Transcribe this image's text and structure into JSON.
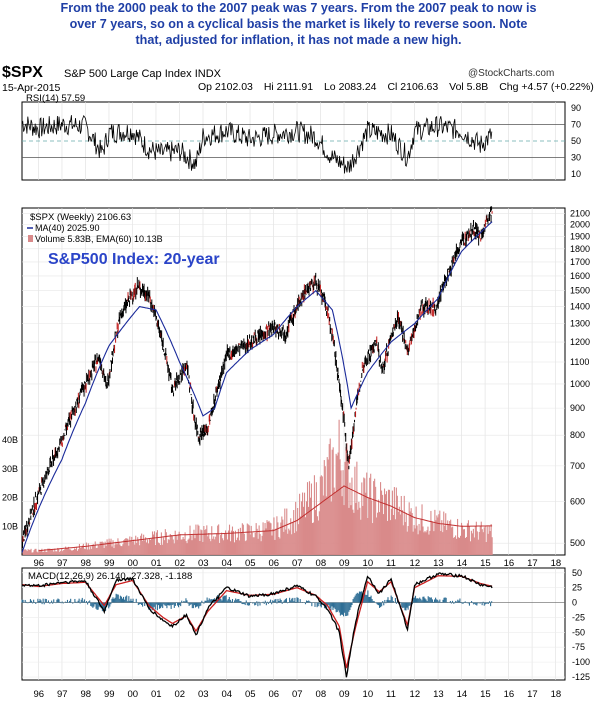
{
  "headline": {
    "line1": "From the 2000 peak to the 2007 peak was 7 years. From the 2007 peak to now is",
    "line2": "over 7 years, so on a cyclical basis the market is likely to reverse soon. Note",
    "line3": "that, adjusted for inflation, it has not made a new high."
  },
  "chart_header": {
    "ticker": "$SPX",
    "name": "S&P 500 Large Cap Index",
    "exchange": "INDX",
    "credit": "@StockCharts.com",
    "date": "15-Apr-2015",
    "open": "Op 2102.03",
    "high": "Hi 2111.91",
    "low": "Lo 2083.24",
    "close": "Cl 2106.63",
    "volume": "Vol 5.8B",
    "change": "Chg +4.57 (+0.22%)",
    "change_sign": "▲"
  },
  "colors": {
    "panel_bg": "#ffffff",
    "plot_bg": "#ffffff",
    "price_bars": "#000000",
    "ma_line": "#1a2a9a",
    "volume_bars": "#d98a8a",
    "volume_ema": "#c23030",
    "headline": "#1f3fa6",
    "macd_line": "#000000",
    "signal_line": "#cc2020",
    "histogram": "#2e6e95"
  },
  "chart_data": [
    {
      "panel": "rsi",
      "type": "line",
      "legend": "RSI(14) 57.59",
      "yticks": [
        10,
        30,
        50,
        70,
        90
      ],
      "ylim": [
        3,
        97
      ],
      "reference_lines": [
        30,
        50,
        70
      ],
      "x": [
        1995.3,
        1996,
        1997,
        1998,
        1998.7,
        1999,
        2000,
        2000.7,
        2001.2,
        2002,
        2002.7,
        2003,
        2004,
        2005,
        2006,
        2007,
        2007.8,
        2008.5,
        2009.2,
        2010,
        2011,
        2011.7,
        2012,
        2013,
        2014,
        2014.8,
        2015.3
      ],
      "values": [
        72,
        65,
        70,
        68,
        35,
        60,
        62,
        40,
        35,
        38,
        22,
        55,
        62,
        52,
        58,
        62,
        55,
        30,
        18,
        62,
        58,
        30,
        62,
        68,
        62,
        45,
        57.59
      ]
    },
    {
      "panel": "price",
      "type": "line",
      "scale": "log",
      "legend": [
        "$SPX (Weekly) 2106.63",
        "MA(40) 2025.90",
        "Volume 5.83B, EMA(60) 10.13B"
      ],
      "annotation": "S&P500 Index: 20-year",
      "xticks": [
        "96",
        "97",
        "98",
        "99",
        "00",
        "01",
        "02",
        "03",
        "04",
        "05",
        "06",
        "07",
        "08",
        "09",
        "10",
        "11",
        "12",
        "13",
        "14",
        "15",
        "16",
        "17",
        "18"
      ],
      "yticks": [
        500,
        600,
        700,
        800,
        900,
        1000,
        1100,
        1200,
        1300,
        1400,
        1500,
        1600,
        1700,
        1800,
        1900,
        2000,
        2100
      ],
      "volume_ticks": [
        "10B",
        "20B",
        "30B",
        "40B"
      ],
      "ylim": [
        475,
        2150
      ],
      "x": [
        1995.3,
        1996,
        1997,
        1998,
        1998.6,
        1998.9,
        1999.5,
        2000.2,
        2000.7,
        2001.3,
        2001.7,
        2002.3,
        2002.6,
        2002.8,
        2003.2,
        2004,
        2005,
        2006,
        2006.5,
        2007.4,
        2007.8,
        2008.3,
        2008.8,
        2009.2,
        2009.8,
        2010.4,
        2010.6,
        2011.3,
        2011.7,
        2012.3,
        2012.9,
        2013.5,
        2014,
        2014.5,
        2014.8,
        2015.3
      ],
      "values": [
        500,
        620,
        780,
        1000,
        1130,
        980,
        1350,
        1530,
        1470,
        1190,
        970,
        1090,
        880,
        800,
        820,
        1130,
        1200,
        1280,
        1250,
        1510,
        1560,
        1380,
        1000,
        700,
        1080,
        1200,
        1050,
        1350,
        1140,
        1400,
        1390,
        1650,
        1850,
        1960,
        1900,
        2106.63
      ],
      "ma40": {
        "x": [
          1995.3,
          1996,
          1997,
          1998,
          1999,
          2000.3,
          2001,
          2002,
          2003,
          2003.5,
          2004,
          2005,
          2006,
          2007,
          2007.8,
          2008.5,
          2009.3,
          2010,
          2011,
          2012,
          2013,
          2014,
          2015.3
        ],
        "values": [
          480,
          580,
          720,
          920,
          1180,
          1400,
          1380,
          1100,
          870,
          900,
          1050,
          1160,
          1240,
          1400,
          1500,
          1380,
          900,
          1050,
          1200,
          1300,
          1450,
          1780,
          2025.9
        ]
      },
      "volume_bars": {
        "x": [
          1996,
          1997,
          1998,
          1999,
          2000,
          2001,
          2002,
          2003,
          2004,
          2005,
          2006,
          2007,
          2008,
          2008.8,
          2009.3,
          2010,
          2011,
          2012,
          2013,
          2014,
          2015
        ],
        "values": [
          1.5,
          2.0,
          3.0,
          4.0,
          5.0,
          6.0,
          7.0,
          7.5,
          7.5,
          8.0,
          9.0,
          14.0,
          22.0,
          35.0,
          25.0,
          20.0,
          18.0,
          13.0,
          11.0,
          9.0,
          8.0
        ]
      },
      "volume_ema": {
        "x": [
          1996,
          1998,
          2000,
          2002,
          2004,
          2006,
          2007,
          2008,
          2009,
          2010,
          2011,
          2012,
          2013,
          2014,
          2015.3
        ],
        "values": [
          1.5,
          3.0,
          5.0,
          7.0,
          7.5,
          8.5,
          12.0,
          18.0,
          24.0,
          20.0,
          17.0,
          13.0,
          11.0,
          10.0,
          10.13
        ]
      }
    },
    {
      "panel": "macd",
      "type": "line",
      "legend": "MACD(12,26,9) 26.140, 27.328, -1.188",
      "yticks": [
        50,
        25,
        0,
        -25,
        -50,
        -75,
        -100,
        -125
      ],
      "ylim": [
        -130,
        58
      ],
      "x": [
        1995.3,
        1996,
        1997,
        1998,
        1998.8,
        1999.3,
        2000,
        2000.7,
        2001.3,
        2001.7,
        2002.3,
        2002.7,
        2003.2,
        2004,
        2005,
        2006,
        2007,
        2007.8,
        2008.3,
        2008.8,
        2009.1,
        2009.5,
        2010,
        2010.5,
        2011,
        2011.7,
        2012,
        2013,
        2014,
        2014.8,
        2015.3
      ],
      "macd": [
        30,
        28,
        34,
        36,
        -15,
        38,
        40,
        -10,
        -30,
        -40,
        -20,
        -55,
        -10,
        25,
        10,
        15,
        28,
        10,
        -10,
        -50,
        -125,
        -30,
        45,
        15,
        40,
        -45,
        30,
        48,
        45,
        30,
        26.14
      ],
      "signal": [
        30,
        27,
        32,
        34,
        -5,
        30,
        37,
        -5,
        -25,
        -35,
        -22,
        -48,
        -15,
        20,
        12,
        14,
        25,
        12,
        -5,
        -40,
        -110,
        -40,
        35,
        18,
        35,
        -38,
        25,
        45,
        44,
        32,
        27.328
      ]
    }
  ]
}
